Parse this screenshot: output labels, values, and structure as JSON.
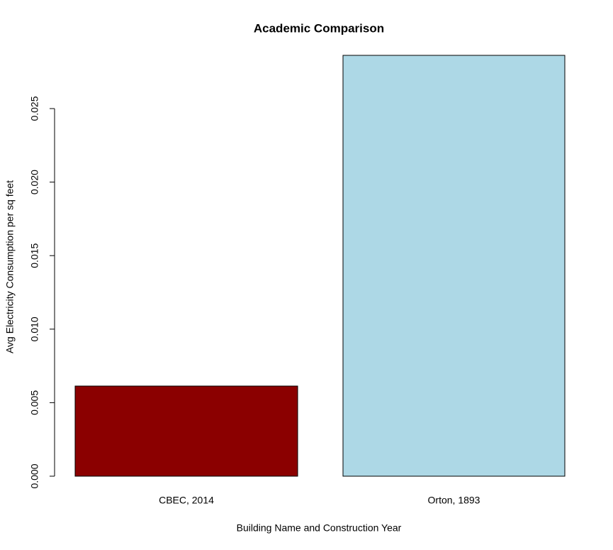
{
  "chart_data": {
    "type": "bar",
    "title": "Academic Comparison",
    "x_label": "Building Name and Construction Year",
    "y_label": "Avg Electricity Consumption per sq feet",
    "categories": [
      "CBEC, 2014",
      "Orton, 1893"
    ],
    "values": [
      0.00613,
      0.02862
    ],
    "colors": [
      "#8b0000",
      "#add8e6"
    ],
    "ylim": [
      0,
      0.03
    ],
    "yticks": [
      {
        "value": 0,
        "label": "0.000"
      },
      {
        "value": 0.005,
        "label": "0.005"
      },
      {
        "value": 0.01,
        "label": "0.010"
      },
      {
        "value": 0.015,
        "label": "0.015"
      },
      {
        "value": 0.02,
        "label": "0.020"
      },
      {
        "value": 0.025,
        "label": "0.025"
      }
    ],
    "grid": false
  }
}
